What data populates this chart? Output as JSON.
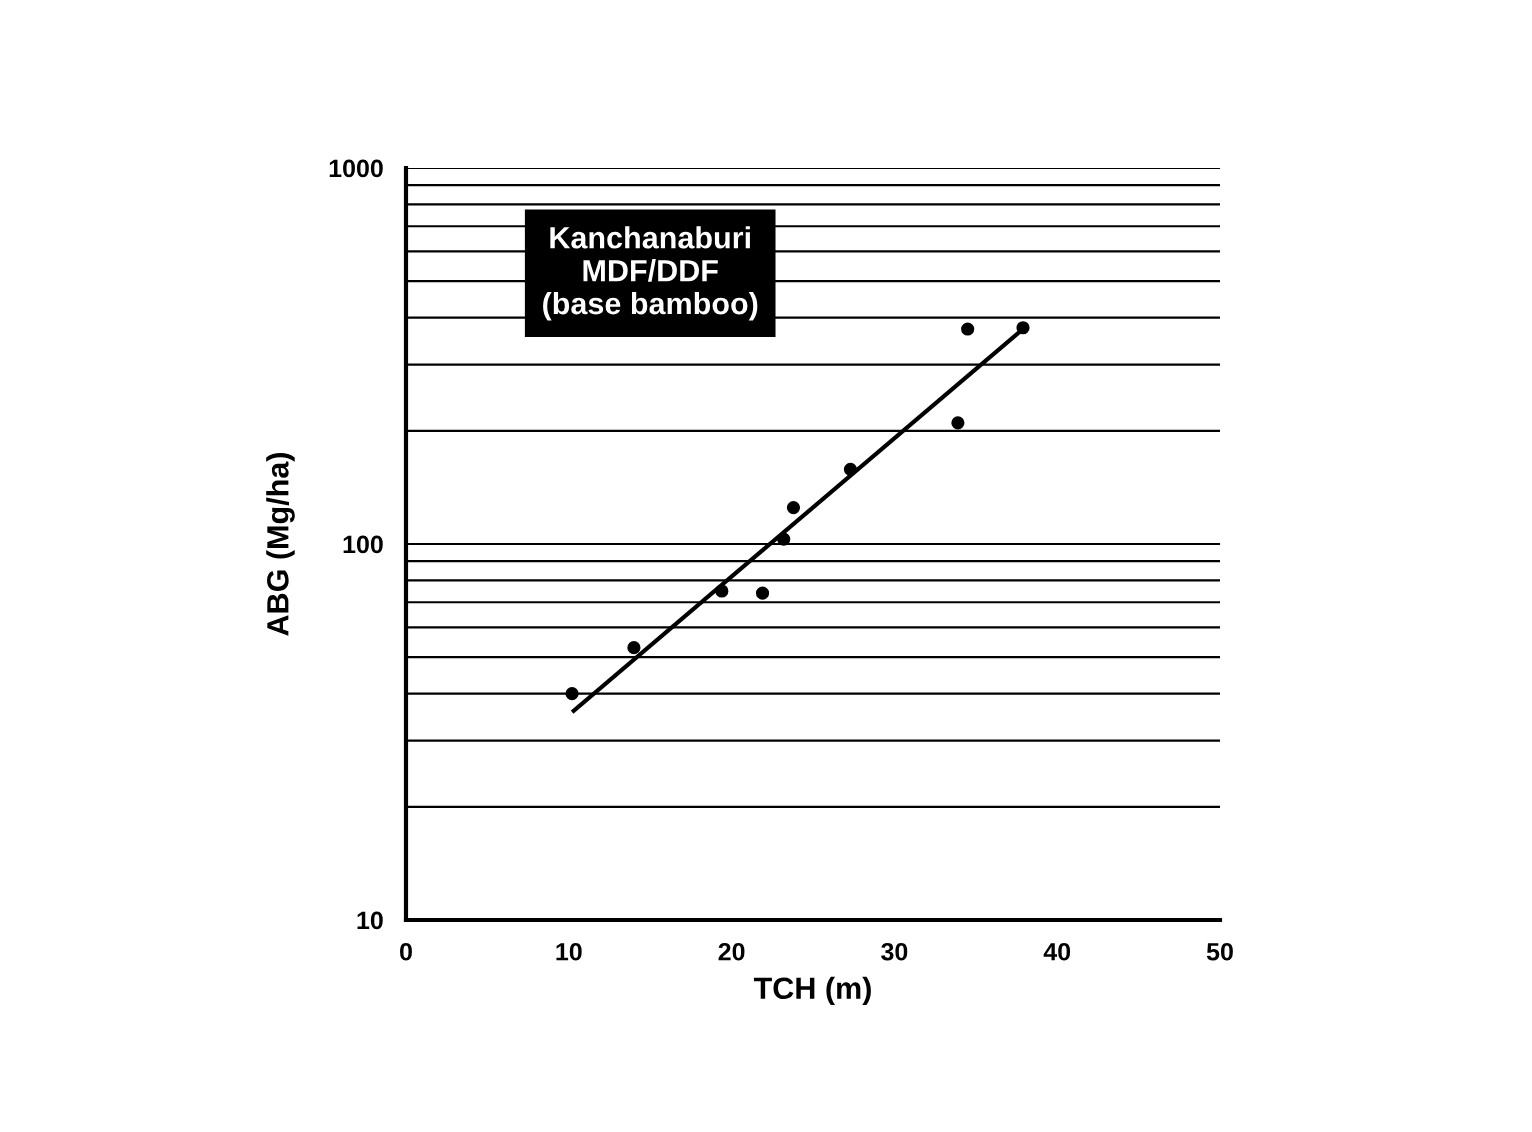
{
  "chart_data": {
    "type": "scatter",
    "xlabel": "TCH (m)",
    "ylabel": "ABG (Mg/ha)",
    "series": [
      {
        "type": "scatter",
        "color": "#000000",
        "marker": "circle",
        "x": [
          10.2,
          14.0,
          19.4,
          21.9,
          23.2,
          23.8,
          27.3,
          33.9,
          34.5,
          37.9
        ],
        "values": [
          40,
          53,
          75,
          74,
          103,
          125,
          158,
          210,
          373,
          376
        ]
      },
      {
        "type": "line",
        "color": "#000000",
        "marker": "none",
        "line_style": "solid",
        "x": [
          10.3,
          37.8
        ],
        "values": [
          36,
          370
        ]
      }
    ],
    "log": "y",
    "xlim": [
      0,
      50
    ],
    "xticks": [
      0,
      10,
      20,
      30,
      40,
      50
    ],
    "ylim": [
      10,
      1000
    ],
    "yticks": [
      10,
      {
        "value": 20,
        "label": null
      },
      {
        "value": 30,
        "label": null
      },
      {
        "value": 40,
        "label": null
      },
      {
        "value": 50,
        "label": null
      },
      {
        "value": 60,
        "label": null
      },
      {
        "value": 70,
        "label": null
      },
      {
        "value": 80,
        "label": null
      },
      {
        "value": 90,
        "label": null
      },
      100,
      {
        "value": 200,
        "label": null
      },
      {
        "value": 300,
        "label": null
      },
      {
        "value": 400,
        "label": null
      },
      {
        "value": 500,
        "label": null
      },
      {
        "value": 600,
        "label": null
      },
      {
        "value": 700,
        "label": null
      },
      {
        "value": 800,
        "label": null
      },
      {
        "value": 900,
        "label": null
      },
      1000
    ],
    "grid": "y",
    "legend": false,
    "annotations": [
      "Kanchanaburi\nMDF/DDF\n(base bamboo)"
    ]
  }
}
